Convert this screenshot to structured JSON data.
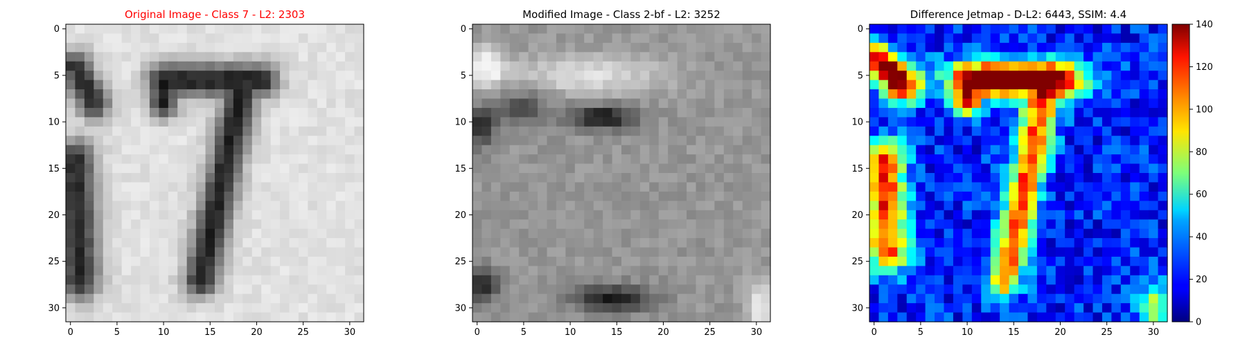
{
  "figure": {
    "titles": [
      "Original Image - Class 7 - L2: 2303",
      "Modified Image - Class 2-bf - L2: 3252",
      "Difference Jetmap - D-L2: 6443, SSIM: 4.4"
    ],
    "title_colors": [
      "#ff0000",
      "#000000",
      "#000000"
    ]
  },
  "chart_data": [
    {
      "type": "heatmap",
      "title": "Original Image - Class 7 - L2: 2303",
      "colormap": "gray",
      "grid_size": [
        32,
        32
      ],
      "xlim": [
        -0.5,
        31.5
      ],
      "ylim": [
        31.5,
        -0.5
      ],
      "xticks": [
        0,
        5,
        10,
        15,
        20,
        25,
        30
      ],
      "yticks": [
        0,
        5,
        10,
        15,
        20,
        25,
        30
      ],
      "content": "Light background with a dark digit 7 (top bar rows 5-7, diagonal stem down to rows 27-28 around columns 13-16) and a dark partial glyph along the left edge (rows 3-27)."
    },
    {
      "type": "heatmap",
      "title": "Modified Image - Class 2-bf - L2: 3252",
      "colormap": "gray",
      "grid_size": [
        32,
        32
      ],
      "xlim": [
        -0.5,
        31.5
      ],
      "ylim": [
        31.5,
        -0.5
      ],
      "xticks": [
        0,
        5,
        10,
        15,
        20,
        25,
        30
      ],
      "yticks": [
        0,
        5,
        10,
        15,
        20,
        25,
        30
      ],
      "content": "Medium gray face-like texture: bright band rows 3-7, dark eye-like spot at rows 9-10 cols 11-16, dark mouth-like band rows 28-30 cols 12-18, dark spot bottom-left."
    },
    {
      "type": "heatmap",
      "title": "Difference Jetmap - D-L2: 6443, SSIM: 4.4",
      "colormap": "jet",
      "grid_size": [
        32,
        32
      ],
      "xlim": [
        -0.5,
        31.5
      ],
      "ylim": [
        31.5,
        -0.5
      ],
      "xticks": [
        0,
        5,
        10,
        15,
        20,
        25,
        30
      ],
      "yticks": [
        0,
        5,
        10,
        15,
        20,
        25,
        30
      ],
      "colorbar": {
        "range": [
          0,
          140
        ],
        "ticks": [
          0,
          20,
          40,
          60,
          80,
          100,
          120,
          140
        ]
      },
      "content": "Mostly low values (blue) with a high-value (red/orange) 7 shape: top bar rows 3-8 cols 10-21 peaking near 140, stem down to rows 26-27 cols 13-17 (~70-110), high values at left edge rows 3-7 (~130) and rows 14-24 (~80-120)."
    }
  ]
}
